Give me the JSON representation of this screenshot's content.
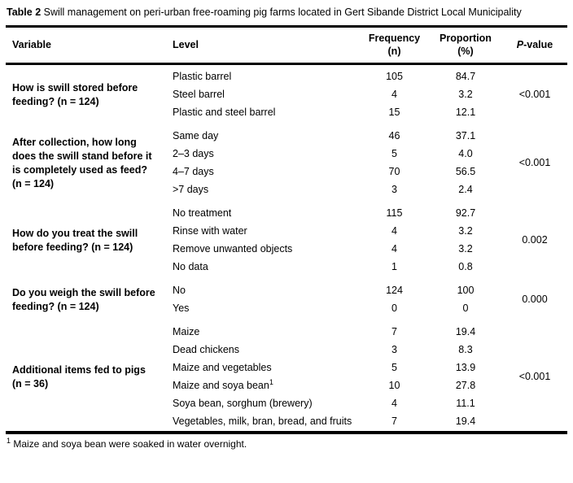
{
  "title": {
    "label": "Table 2",
    "text": " Swill management on peri-urban free-roaming pig farms located in Gert Sibande District Local Municipality"
  },
  "columns": {
    "variable": "Variable",
    "level": "Level",
    "frequency_line1": "Frequency",
    "frequency_line2": "(n)",
    "proportion_line1": "Proportion",
    "proportion_line2": "(%)",
    "pvalue_italic": "P",
    "pvalue_rest": "-value"
  },
  "sections": [
    {
      "variable": "How is swill stored before feeding? (n = 124)",
      "p_value": "<0.001",
      "levels": [
        {
          "label": "Plastic barrel",
          "frequency": "105",
          "proportion": "84.7"
        },
        {
          "label": "Steel barrel",
          "frequency": "4",
          "proportion": "3.2"
        },
        {
          "label": "Plastic and steel barrel",
          "frequency": "15",
          "proportion": "12.1"
        }
      ]
    },
    {
      "variable": "After collection, how long does the swill stand before it is completely used as feed? (n = 124)",
      "p_value": "<0.001",
      "levels": [
        {
          "label": "Same day",
          "frequency": "46",
          "proportion": "37.1"
        },
        {
          "label": "2–3 days",
          "frequency": "5",
          "proportion": "4.0"
        },
        {
          "label": "4–7 days",
          "frequency": "70",
          "proportion": "56.5"
        },
        {
          "label": ">7 days",
          "frequency": "3",
          "proportion": "2.4"
        }
      ]
    },
    {
      "variable": "How do you treat the swill before feeding? (n = 124)",
      "p_value": "0.002",
      "levels": [
        {
          "label": "No treatment",
          "frequency": "115",
          "proportion": "92.7"
        },
        {
          "label": "Rinse with water",
          "frequency": "4",
          "proportion": "3.2"
        },
        {
          "label": "Remove unwanted objects",
          "frequency": "4",
          "proportion": "3.2"
        },
        {
          "label": "No data",
          "frequency": "1",
          "proportion": "0.8"
        }
      ]
    },
    {
      "variable": "Do you weigh the swill before feeding? (n = 124)",
      "p_value": "0.000",
      "levels": [
        {
          "label": "No",
          "frequency": "124",
          "proportion": "100"
        },
        {
          "label": "Yes",
          "frequency": "0",
          "proportion": "0"
        }
      ]
    },
    {
      "variable": "Additional items fed to pigs (n = 36)",
      "p_value": "<0.001",
      "levels": [
        {
          "label": "Maize",
          "frequency": "7",
          "proportion": "19.4"
        },
        {
          "label": "Dead chickens",
          "frequency": "3",
          "proportion": "8.3"
        },
        {
          "label": "Maize and vegetables",
          "frequency": "5",
          "proportion": "13.9"
        },
        {
          "label": "Maize and soya bean",
          "sup": "1",
          "frequency": "10",
          "proportion": "27.8"
        },
        {
          "label": "Soya bean, sorghum (brewery)",
          "frequency": "4",
          "proportion": "11.1"
        },
        {
          "label": "Vegetables, milk, bran, bread, and fruits",
          "frequency": "7",
          "proportion": "19.4"
        }
      ]
    }
  ],
  "footnote": {
    "sup": "1",
    "text": " Maize and soya bean were soaked in water overnight."
  }
}
